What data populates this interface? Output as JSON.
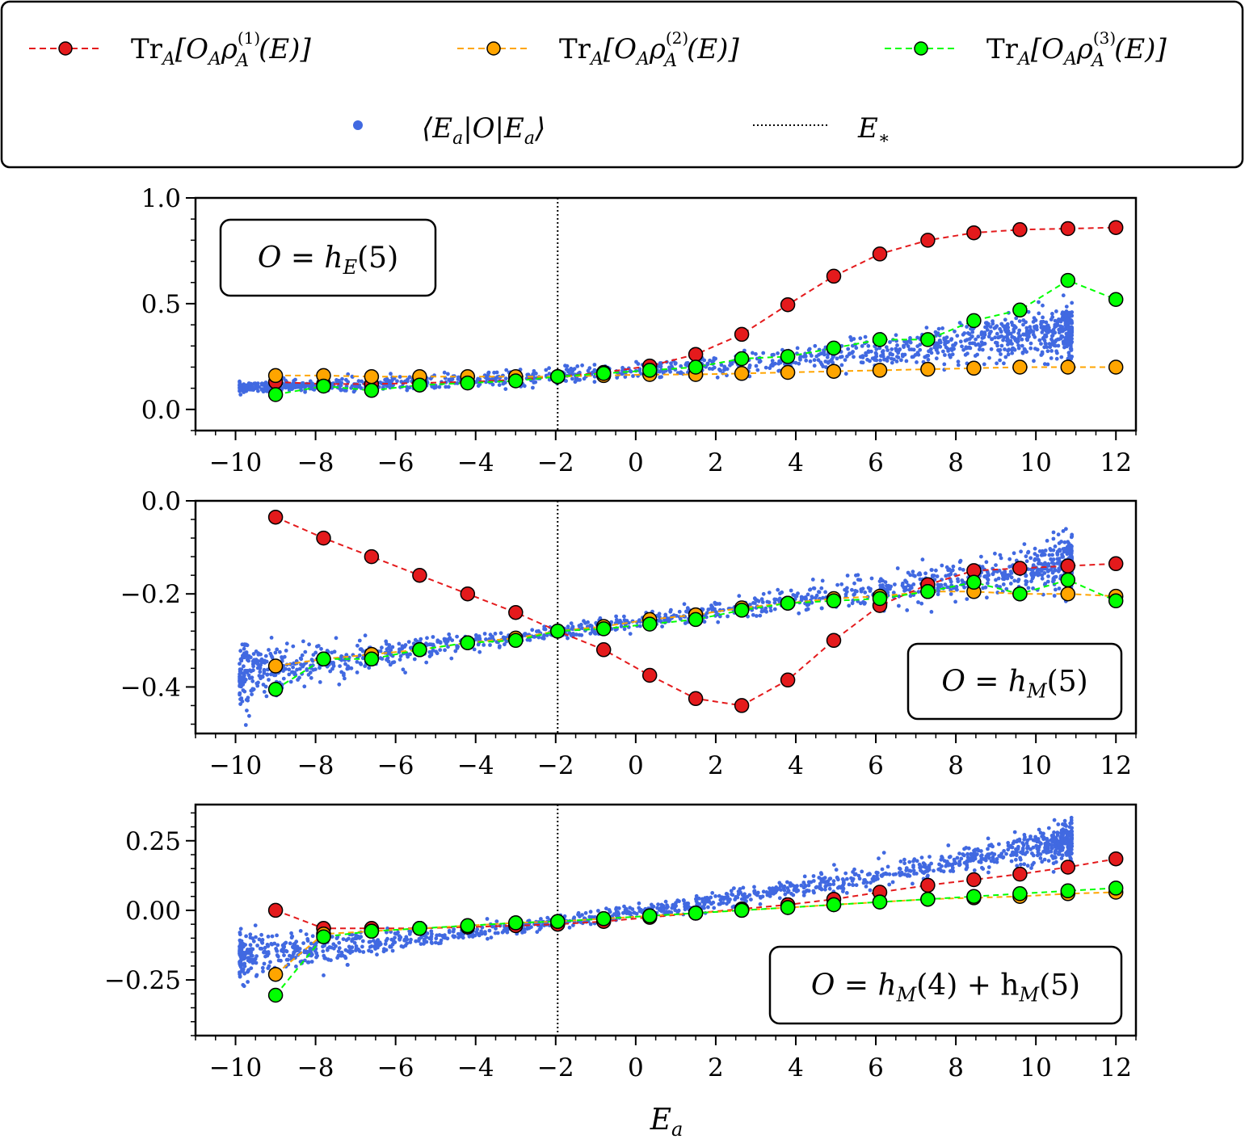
{
  "chart_data": {
    "type": "scatter",
    "xlabel": "E_a",
    "x_ticks": [
      "−10",
      "−8",
      "−6",
      "−4",
      "−2",
      "0",
      "2",
      "4",
      "6",
      "8",
      "10",
      "12"
    ],
    "x_tick_values": [
      -10,
      -8,
      -6,
      -4,
      -2,
      0,
      2,
      4,
      6,
      8,
      10,
      12
    ],
    "xlim": [
      -11,
      12.5
    ],
    "e_star": -1.95,
    "legend": {
      "tr1": {
        "label_main": "Tr",
        "label_sub": "A",
        "label_rest": "[O",
        "label_sub2": "A",
        "label_rho": "ρ",
        "label_sup": "(1)",
        "label_tail": "(E)]",
        "color": "#e41a1c"
      },
      "tr2": {
        "label_main": "Tr",
        "label_sub": "A",
        "label_rest": "[O",
        "label_sub2": "A",
        "label_rho": "ρ",
        "label_sup": "(2)",
        "label_tail": "(E)]",
        "color": "#ffa500"
      },
      "tr3": {
        "label_main": "Tr",
        "label_sub": "A",
        "label_rest": "[O",
        "label_sub2": "A",
        "label_rho": "ρ",
        "label_sup": "(3)",
        "label_tail": "(E)]",
        "color": "#00ff00"
      },
      "eig": {
        "label": "⟨E",
        "label_sub": "a",
        "label_mid": "|O|E",
        "label_sub2": "a",
        "label_end": "⟩",
        "color": "#4169e1"
      },
      "estar": {
        "label": "E",
        "label_sub": "∗"
      }
    },
    "panels": [
      {
        "operator_label": "O = h",
        "operator_sub": "E",
        "operator_tail": "(5)",
        "ylim": [
          -0.1,
          1.0
        ],
        "y_ticks": [
          "0.0",
          "0.5",
          "1.0"
        ],
        "y_tick_values": [
          0.0,
          0.5,
          1.0
        ],
        "x": [
          -9.0,
          -7.8,
          -6.6,
          -5.4,
          -4.2,
          -3.0,
          -1.95,
          -0.8,
          0.35,
          1.5,
          2.65,
          3.8,
          4.95,
          6.1,
          7.3,
          8.45,
          9.6,
          10.8,
          12.0
        ],
        "scatter_fn": {
          "a": 0.1566,
          "b": 0.0105,
          "curv": 0.0005,
          "noise": [
            0.01,
            0.02,
            0.06
          ],
          "xmin": -9.9,
          "xmax": 10.9
        },
        "series": [
          {
            "name": "tr1",
            "values": [
              0.13,
              0.12,
              0.12,
              0.125,
              0.13,
              0.14,
              0.155,
              0.175,
              0.205,
              0.26,
              0.355,
              0.495,
              0.63,
              0.735,
              0.8,
              0.835,
              0.85,
              0.855,
              0.86
            ]
          },
          {
            "name": "tr2",
            "values": [
              0.16,
              0.16,
              0.155,
              0.155,
              0.155,
              0.155,
              0.155,
              0.16,
              0.165,
              0.165,
              0.17,
              0.175,
              0.18,
              0.185,
              0.19,
              0.195,
              0.2,
              0.2,
              0.2
            ]
          },
          {
            "name": "tr3",
            "values": [
              0.07,
              0.11,
              0.09,
              0.115,
              0.125,
              0.135,
              0.155,
              0.17,
              0.185,
              0.2,
              0.24,
              0.25,
              0.29,
              0.33,
              0.33,
              0.42,
              0.47,
              0.61,
              0.52
            ]
          }
        ]
      },
      {
        "operator_label": "O = h",
        "operator_sub": "M",
        "operator_tail": "(5)",
        "ylim": [
          -0.5,
          0.0
        ],
        "y_ticks": [
          "0.0",
          "−0.2",
          "−0.4"
        ],
        "y_tick_values": [
          0.0,
          -0.2,
          -0.4
        ],
        "x": [
          -9.0,
          -7.8,
          -6.6,
          -5.4,
          -4.2,
          -3.0,
          -1.95,
          -0.8,
          0.35,
          1.5,
          2.65,
          3.8,
          4.95,
          6.1,
          7.3,
          8.45,
          9.6,
          10.8,
          12.0
        ],
        "scatter_fn": {
          "a": -0.2818,
          "b": 0.0113,
          "curv": 0.0,
          "noise": [
            0.035,
            0.008,
            0.03
          ],
          "xmin": -9.9,
          "xmax": 10.9
        },
        "series": [
          {
            "name": "tr1",
            "values": [
              -0.035,
              -0.08,
              -0.12,
              -0.16,
              -0.2,
              -0.24,
              -0.28,
              -0.32,
              -0.375,
              -0.425,
              -0.44,
              -0.385,
              -0.3,
              -0.225,
              -0.18,
              -0.15,
              -0.145,
              -0.14,
              -0.135
            ]
          },
          {
            "name": "tr2",
            "values": [
              -0.355,
              -0.34,
              -0.33,
              -0.32,
              -0.305,
              -0.295,
              -0.28,
              -0.27,
              -0.255,
              -0.245,
              -0.23,
              -0.22,
              -0.21,
              -0.205,
              -0.195,
              -0.195,
              -0.2,
              -0.2,
              -0.205
            ]
          },
          {
            "name": "tr3",
            "values": [
              -0.405,
              -0.34,
              -0.34,
              -0.32,
              -0.305,
              -0.3,
              -0.28,
              -0.275,
              -0.265,
              -0.255,
              -0.235,
              -0.22,
              -0.215,
              -0.21,
              -0.195,
              -0.175,
              -0.2,
              -0.17,
              -0.215
            ]
          }
        ]
      },
      {
        "operator_label": "O = h",
        "operator_sub": "M",
        "operator_tail": "(4) + h",
        "operator_sub2": "M",
        "operator_tail2": "(5)",
        "ylim": [
          -0.45,
          0.38
        ],
        "y_ticks": [
          "0.25",
          "0.00",
          "−0.25"
        ],
        "y_tick_values": [
          0.25,
          0.0,
          -0.25
        ],
        "x": [
          -9.0,
          -7.8,
          -6.6,
          -5.4,
          -4.2,
          -3.0,
          -1.95,
          -0.8,
          0.35,
          1.5,
          2.65,
          3.8,
          4.95,
          6.1,
          7.3,
          8.45,
          9.6,
          10.8,
          12.0
        ],
        "scatter_fn": {
          "a": -0.045,
          "b": 0.018,
          "curv": 0.0004,
          "noise": [
            0.05,
            0.012,
            0.035
          ],
          "xmin": -9.9,
          "xmax": 10.9
        },
        "series": [
          {
            "name": "tr1",
            "values": [
              0.0,
              -0.065,
              -0.065,
              -0.065,
              -0.06,
              -0.055,
              -0.05,
              -0.04,
              -0.025,
              -0.01,
              0.005,
              0.02,
              0.04,
              0.065,
              0.09,
              0.11,
              0.13,
              0.155,
              0.185
            ]
          },
          {
            "name": "tr2",
            "values": [
              -0.23,
              -0.085,
              -0.075,
              -0.065,
              -0.055,
              -0.045,
              -0.04,
              -0.03,
              -0.02,
              -0.01,
              0.0,
              0.01,
              0.02,
              0.03,
              0.04,
              0.045,
              0.05,
              0.06,
              0.065
            ]
          },
          {
            "name": "tr3",
            "values": [
              -0.305,
              -0.095,
              -0.075,
              -0.065,
              -0.055,
              -0.045,
              -0.04,
              -0.03,
              -0.02,
              -0.01,
              0.0,
              0.01,
              0.02,
              0.03,
              0.04,
              0.05,
              0.06,
              0.07,
              0.08
            ]
          }
        ]
      }
    ]
  }
}
